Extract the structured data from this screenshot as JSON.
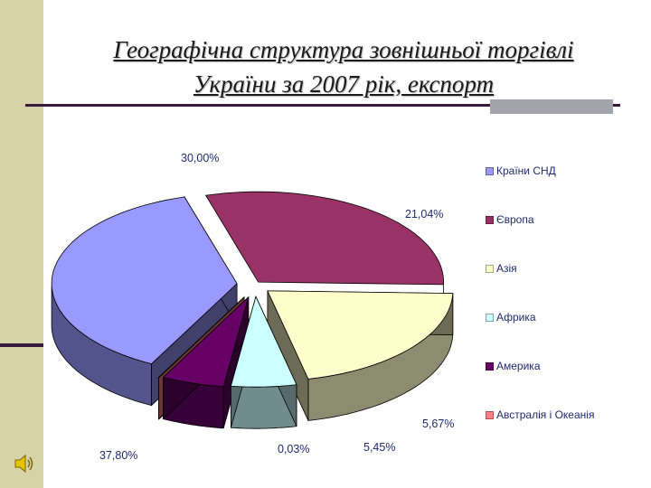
{
  "slide": {
    "title_line1": "Географічна структура зовнішньої торгівлі",
    "title_line2": "України за 2007 рік, експорт",
    "speaker_icon": "speaker-icon"
  },
  "chart_data": {
    "type": "pie",
    "title": "",
    "style": "3d-exploded",
    "legend_position": "right",
    "categories": [
      "Країни СНД",
      "Європа",
      "Азія",
      "Африка",
      "Америка",
      "Австралія і Океанія"
    ],
    "values": [
      37.8,
      30.0,
      21.04,
      5.67,
      5.45,
      0.03
    ],
    "labels": [
      "37,80%",
      "30,00%",
      "21,04%",
      "5,67%",
      "5,45%",
      "0,03%"
    ],
    "colors": [
      "#9999ff",
      "#993366",
      "#ffffcc",
      "#ccffff",
      "#660066",
      "#ff8080"
    ]
  }
}
